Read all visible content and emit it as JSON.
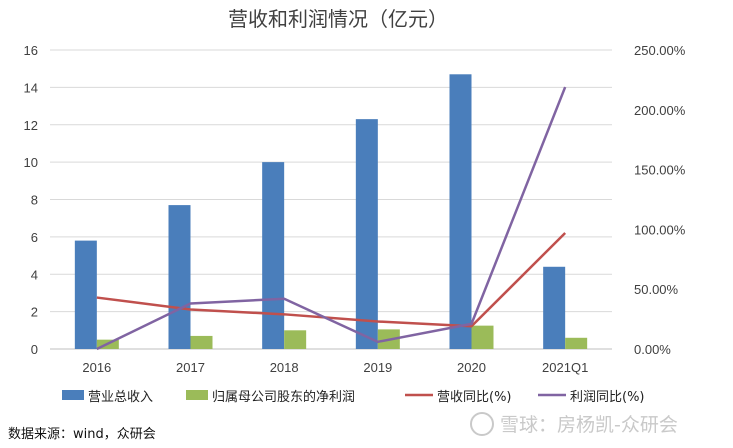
{
  "chart_data": {
    "type": "bar+line",
    "title": "营收和利润情况（亿元）",
    "categories": [
      "2016",
      "2017",
      "2018",
      "2019",
      "2020",
      "2021Q1"
    ],
    "series": [
      {
        "name": "营业总收入",
        "kind": "bar",
        "axis": "left",
        "color": "#4a7ebb",
        "values": [
          5.8,
          7.7,
          10.0,
          12.3,
          14.7,
          4.4
        ]
      },
      {
        "name": "归属母公司股东的净利润",
        "kind": "bar",
        "axis": "left",
        "color": "#9bbb59",
        "values": [
          0.5,
          0.7,
          1.0,
          1.05,
          1.25,
          0.6
        ]
      },
      {
        "name": "营收同比(%)",
        "kind": "line",
        "axis": "right",
        "color": "#c0504d",
        "values": [
          43,
          33,
          29,
          23,
          19,
          97
        ]
      },
      {
        "name": "利润同比(%)",
        "kind": "line",
        "axis": "right",
        "color": "#8064a2",
        "values": [
          0,
          38,
          42,
          6,
          21,
          219
        ]
      }
    ],
    "left_axis": {
      "min": 0,
      "max": 16,
      "step": 2,
      "ticks": [
        "0",
        "2",
        "4",
        "6",
        "8",
        "10",
        "12",
        "14",
        "16"
      ]
    },
    "right_axis": {
      "min": 0,
      "max": 250,
      "step": 50,
      "ticks": [
        "0.00%",
        "50.00%",
        "100.00%",
        "150.00%",
        "200.00%",
        "250.00%"
      ]
    },
    "grid": true,
    "legend_position": "bottom"
  },
  "footer": {
    "source": "数据来源：wind，众研会",
    "watermark": "雪球：房杨凯-众研会"
  }
}
